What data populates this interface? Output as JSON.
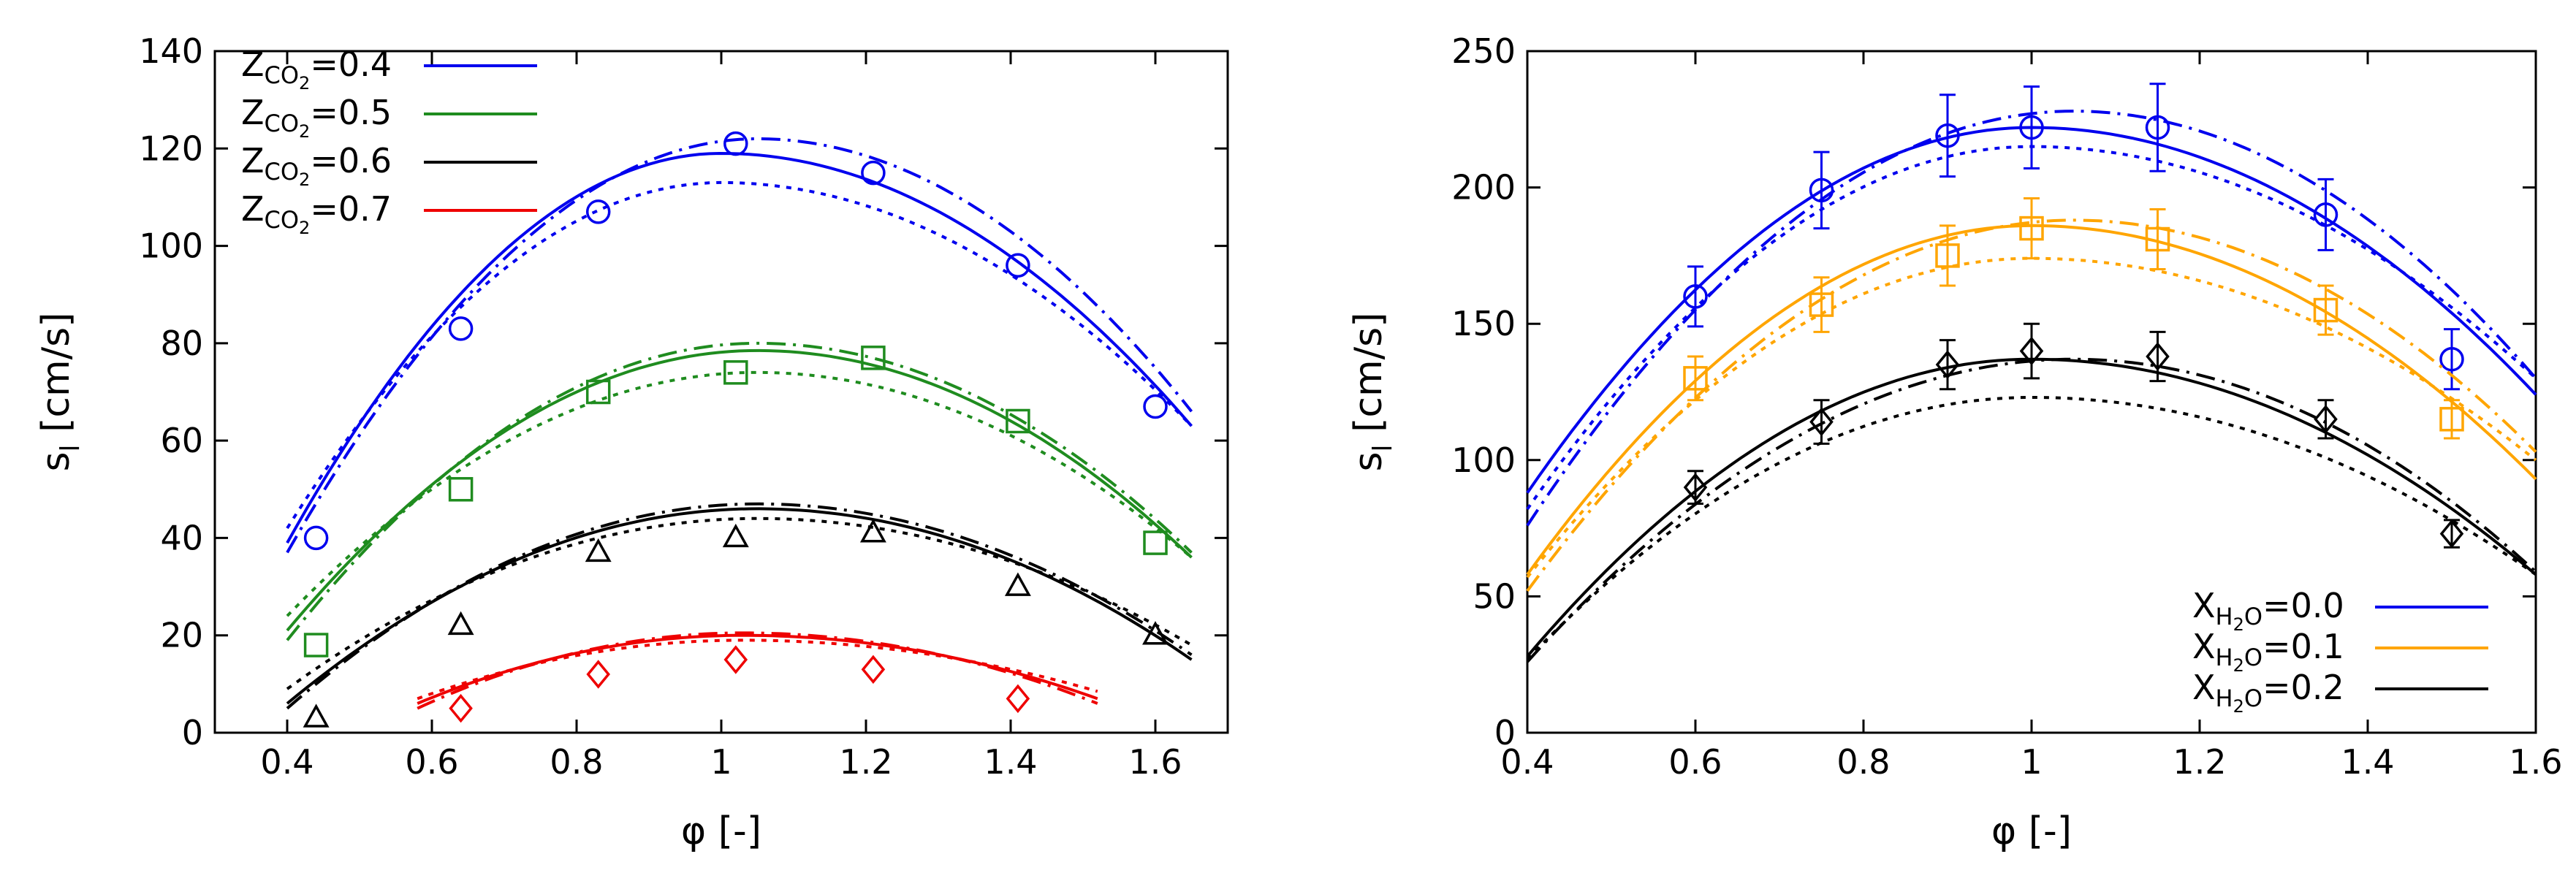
{
  "colors": {
    "blue": "#0000ee",
    "green": "#1f8c1f",
    "black": "#000000",
    "red": "#ee0000",
    "orange": "#ffa500"
  },
  "chart_data": [
    {
      "type": "line",
      "panel": "left",
      "xlabel": {
        "main": "φ",
        "unit": " [-]"
      },
      "ylabel": {
        "main": "s",
        "sub": "l",
        "unit": " [cm/s]"
      },
      "xlim": [
        0.3,
        1.7
      ],
      "ylim": [
        0,
        140
      ],
      "xticks": [
        0.4,
        0.6,
        0.8,
        1,
        1.2,
        1.4,
        1.6
      ],
      "xtick_labels": [
        "0.4",
        "0.6",
        "0.8",
        "1",
        "1.2",
        "1.4",
        "1.6"
      ],
      "yticks": [
        0,
        20,
        40,
        60,
        80,
        100,
        120,
        140
      ],
      "ytick_labels": [
        "0",
        "20",
        "40",
        "60",
        "80",
        "100",
        "120",
        "140"
      ],
      "legend_position": "top-left",
      "series": [
        {
          "legend": {
            "main": "Z",
            "sub": "CO",
            "sub2": "2",
            "value": "=0.4"
          },
          "color": "blue",
          "marker": "circle",
          "x_range": [
            0.4,
            1.65
          ],
          "solid": {
            "peak_x": 1.0,
            "peak_y": 119,
            "y_at_0.4": 39,
            "y_at_1.65": 63
          },
          "dotted": {
            "peak_x": 1.0,
            "peak_y": 113,
            "y_at_0.4": 42,
            "y_at_1.65": 63
          },
          "dashdot": {
            "peak_x": 1.05,
            "peak_y": 122,
            "y_at_0.4": 37,
            "y_at_1.65": 66
          },
          "points_x": [
            0.44,
            0.64,
            0.83,
            1.02,
            1.21,
            1.41,
            1.6
          ],
          "points_y": [
            40,
            83,
            107,
            121,
            115,
            96,
            67
          ]
        },
        {
          "legend": {
            "main": "Z",
            "sub": "CO",
            "sub2": "2",
            "value": "=0.5"
          },
          "color": "green",
          "marker": "square",
          "x_range": [
            0.4,
            1.65
          ],
          "solid": {
            "peak_x": 1.05,
            "peak_y": 78.5,
            "y_at_0.4": 21,
            "y_at_1.65": 36
          },
          "dotted": {
            "peak_x": 1.05,
            "peak_y": 74,
            "y_at_0.4": 24,
            "y_at_1.65": 36
          },
          "dashdot": {
            "peak_x": 1.05,
            "peak_y": 80,
            "y_at_0.4": 19,
            "y_at_1.65": 37
          },
          "points_x": [
            0.44,
            0.64,
            0.83,
            1.02,
            1.21,
            1.41,
            1.6
          ],
          "points_y": [
            18,
            50,
            70,
            74,
            77,
            64,
            39
          ]
        },
        {
          "legend": {
            "main": "Z",
            "sub": "CO",
            "sub2": "2",
            "value": "=0.6"
          },
          "color": "black",
          "marker": "triangle",
          "x_range": [
            0.4,
            1.65
          ],
          "solid": {
            "peak_x": 1.05,
            "peak_y": 46,
            "y_at_0.4": 6,
            "y_at_1.65": 15
          },
          "dotted": {
            "peak_x": 1.05,
            "peak_y": 44,
            "y_at_0.4": 9,
            "y_at_1.65": 18
          },
          "dashdot": {
            "peak_x": 1.05,
            "peak_y": 47,
            "y_at_0.4": 5,
            "y_at_1.65": 16
          },
          "points_x": [
            0.44,
            0.64,
            0.83,
            1.02,
            1.21,
            1.41,
            1.6
          ],
          "points_y": [
            3,
            22,
            37,
            40,
            41,
            30,
            20
          ]
        },
        {
          "legend": {
            "main": "Z",
            "sub": "CO",
            "sub2": "2",
            "value": "=0.7"
          },
          "color": "red",
          "marker": "diamond",
          "x_range": [
            0.58,
            1.52
          ],
          "solid": {
            "peak_x": 1.03,
            "peak_y": 20,
            "y_at_0.58": 6,
            "y_at_1.52": 7
          },
          "dotted": {
            "peak_x": 1.03,
            "peak_y": 19,
            "y_at_0.58": 7,
            "y_at_1.52": 8.5
          },
          "dashdot": {
            "peak_x": 1.03,
            "peak_y": 20.5,
            "y_at_0.58": 5,
            "y_at_1.52": 6
          },
          "points_x": [
            0.64,
            0.83,
            1.02,
            1.21,
            1.41
          ],
          "points_y": [
            5,
            12,
            15,
            13,
            7
          ]
        }
      ]
    },
    {
      "type": "line",
      "panel": "right",
      "xlabel": {
        "main": "φ",
        "unit": " [-]"
      },
      "ylabel": {
        "main": "s",
        "sub": "l",
        "unit": " [cm/s]"
      },
      "xlim": [
        0.4,
        1.6
      ],
      "ylim": [
        0,
        250
      ],
      "xticks": [
        0.4,
        0.6,
        0.8,
        1,
        1.2,
        1.4,
        1.6
      ],
      "xtick_labels": [
        "0.4",
        "0.6",
        "0.8",
        "1",
        "1.2",
        "1.4",
        "1.6"
      ],
      "yticks": [
        0,
        50,
        100,
        150,
        200,
        250
      ],
      "ytick_labels": [
        "0",
        "50",
        "100",
        "150",
        "200",
        "250"
      ],
      "legend_position": "bottom-right",
      "series": [
        {
          "legend": {
            "main": "X",
            "sub": "H",
            "sub2": "2",
            "sub3": "O",
            "value": "=0.0"
          },
          "color": "blue",
          "marker": "circle",
          "x_range": [
            0.4,
            1.6
          ],
          "solid": {
            "peak_x": 1.0,
            "peak_y": 222,
            "y_at_0.4": 88,
            "y_at_1.6": 124
          },
          "dotted": {
            "peak_x": 1.0,
            "peak_y": 215,
            "y_at_0.4": 82,
            "y_at_1.6": 130
          },
          "dashdot": {
            "peak_x": 1.05,
            "peak_y": 228,
            "y_at_0.4": 76,
            "y_at_1.6": 130
          },
          "points_x": [
            0.6,
            0.75,
            0.9,
            1.0,
            1.15,
            1.35,
            1.5
          ],
          "points_y": [
            160,
            199,
            219,
            222,
            222,
            190,
            137
          ],
          "errors": [
            11,
            14,
            15,
            15,
            16,
            13,
            11
          ]
        },
        {
          "legend": {
            "main": "X",
            "sub": "H",
            "sub2": "2",
            "sub3": "O",
            "value": "=0.1"
          },
          "color": "orange",
          "marker": "square",
          "x_range": [
            0.4,
            1.6
          ],
          "solid": {
            "peak_x": 1.0,
            "peak_y": 186,
            "y_at_0.4": 58,
            "y_at_1.6": 93
          },
          "dotted": {
            "peak_x": 1.0,
            "peak_y": 174,
            "y_at_0.4": 57,
            "y_at_1.6": 100
          },
          "dashdot": {
            "peak_x": 1.05,
            "peak_y": 188,
            "y_at_0.4": 52,
            "y_at_1.6": 103
          },
          "points_x": [
            0.6,
            0.75,
            0.9,
            1.0,
            1.15,
            1.35,
            1.5
          ],
          "points_y": [
            130,
            157,
            175,
            185,
            181,
            155,
            115
          ],
          "errors": [
            8,
            10,
            11,
            11,
            11,
            9,
            7
          ]
        },
        {
          "legend": {
            "main": "X",
            "sub": "H",
            "sub2": "2",
            "sub3": "O",
            "value": "=0.2"
          },
          "color": "black",
          "marker": "diamond",
          "x_range": [
            0.4,
            1.6
          ],
          "solid": {
            "peak_x": 1.0,
            "peak_y": 137,
            "y_at_0.4": 28,
            "y_at_1.6": 58
          },
          "dotted": {
            "peak_x": 1.0,
            "peak_y": 123,
            "y_at_0.4": 27,
            "y_at_1.6": 58
          },
          "dashdot": {
            "peak_x": 1.05,
            "peak_y": 137,
            "y_at_0.4": 26,
            "y_at_1.6": 59
          },
          "points_x": [
            0.6,
            0.75,
            0.9,
            1.0,
            1.15,
            1.35,
            1.5
          ],
          "points_y": [
            90,
            114,
            135,
            140,
            138,
            115,
            73
          ],
          "errors": [
            6,
            8,
            9,
            10,
            9,
            7,
            5
          ]
        }
      ]
    }
  ]
}
